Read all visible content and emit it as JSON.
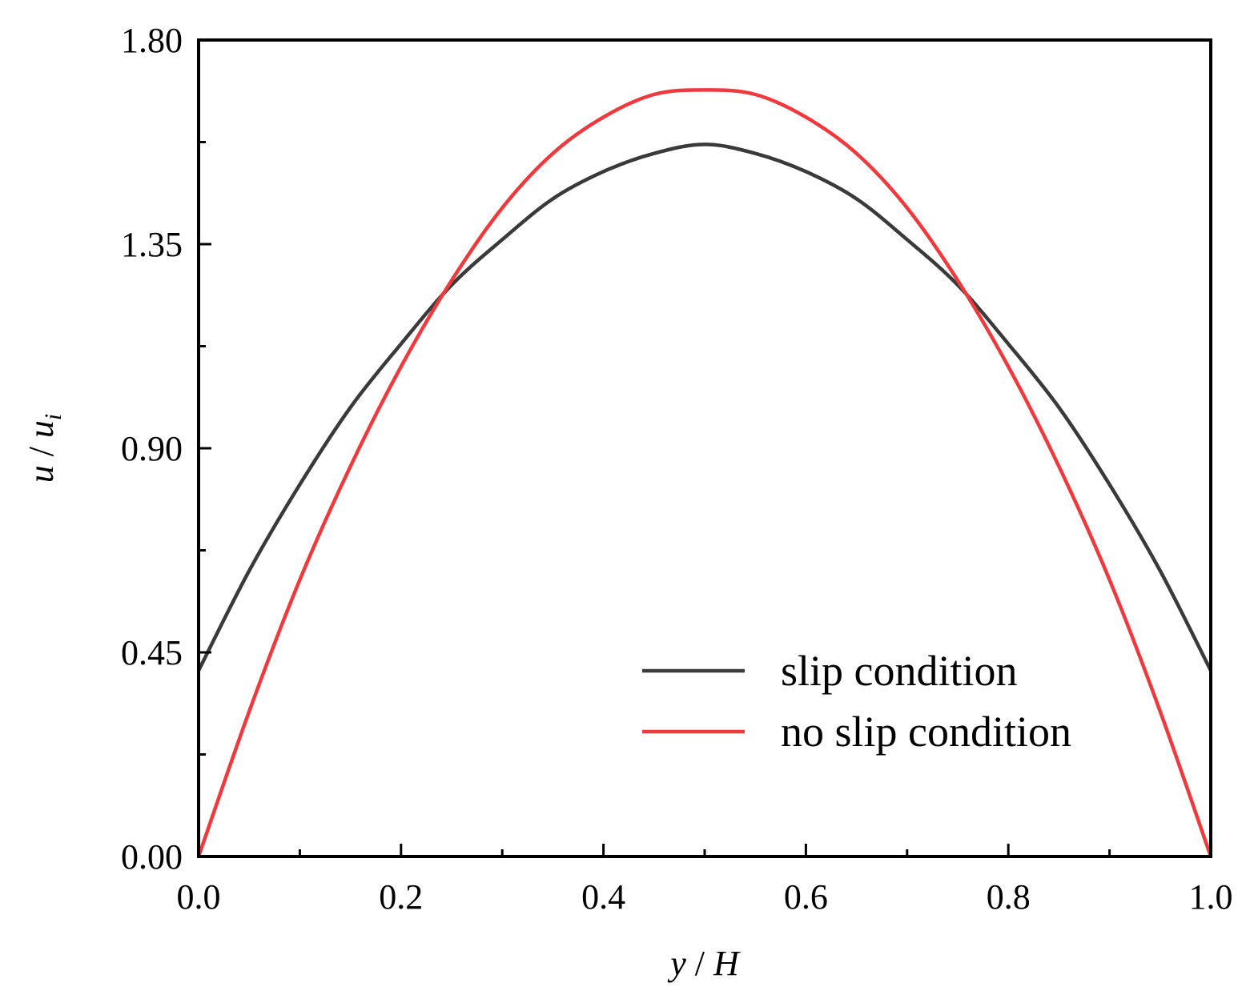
{
  "chart_data": {
    "type": "line",
    "xlabel": {
      "var": "y",
      "sep": " / ",
      "den": "H"
    },
    "ylabel": {
      "var": "u",
      "sep": " / ",
      "den": "u",
      "sub": "i"
    },
    "xlim": [
      0.0,
      1.0
    ],
    "ylim": [
      0.0,
      1.8
    ],
    "x_ticks": [
      "0.0",
      "0.2",
      "0.4",
      "0.6",
      "0.8",
      "1.0"
    ],
    "y_ticks": [
      "0.00",
      "0.45",
      "0.90",
      "1.35",
      "1.80"
    ],
    "grid": false,
    "legend_position": "lower-right",
    "series": [
      {
        "name": "slip condition",
        "color": "#3a3a3a",
        "x": [
          0.0,
          0.05,
          0.1,
          0.15,
          0.2,
          0.25,
          0.3,
          0.35,
          0.4,
          0.45,
          0.5,
          0.55,
          0.6,
          0.65,
          0.7,
          0.75,
          0.8,
          0.85,
          0.9,
          0.95,
          1.0
        ],
        "y": [
          0.41,
          0.63,
          0.82,
          0.99,
          1.13,
          1.26,
          1.36,
          1.45,
          1.51,
          1.55,
          1.57,
          1.55,
          1.51,
          1.45,
          1.36,
          1.26,
          1.13,
          0.99,
          0.82,
          0.63,
          0.41
        ]
      },
      {
        "name": "no slip condition",
        "color": "#f0393d",
        "x": [
          0.0,
          0.05,
          0.1,
          0.15,
          0.2,
          0.25,
          0.3,
          0.35,
          0.4,
          0.45,
          0.5,
          0.55,
          0.6,
          0.65,
          0.7,
          0.75,
          0.8,
          0.85,
          0.9,
          0.95,
          1.0
        ],
        "y": [
          0.0,
          0.32,
          0.61,
          0.86,
          1.08,
          1.27,
          1.43,
          1.55,
          1.63,
          1.68,
          1.69,
          1.68,
          1.63,
          1.55,
          1.43,
          1.27,
          1.08,
          0.86,
          0.61,
          0.32,
          0.0
        ]
      }
    ]
  }
}
